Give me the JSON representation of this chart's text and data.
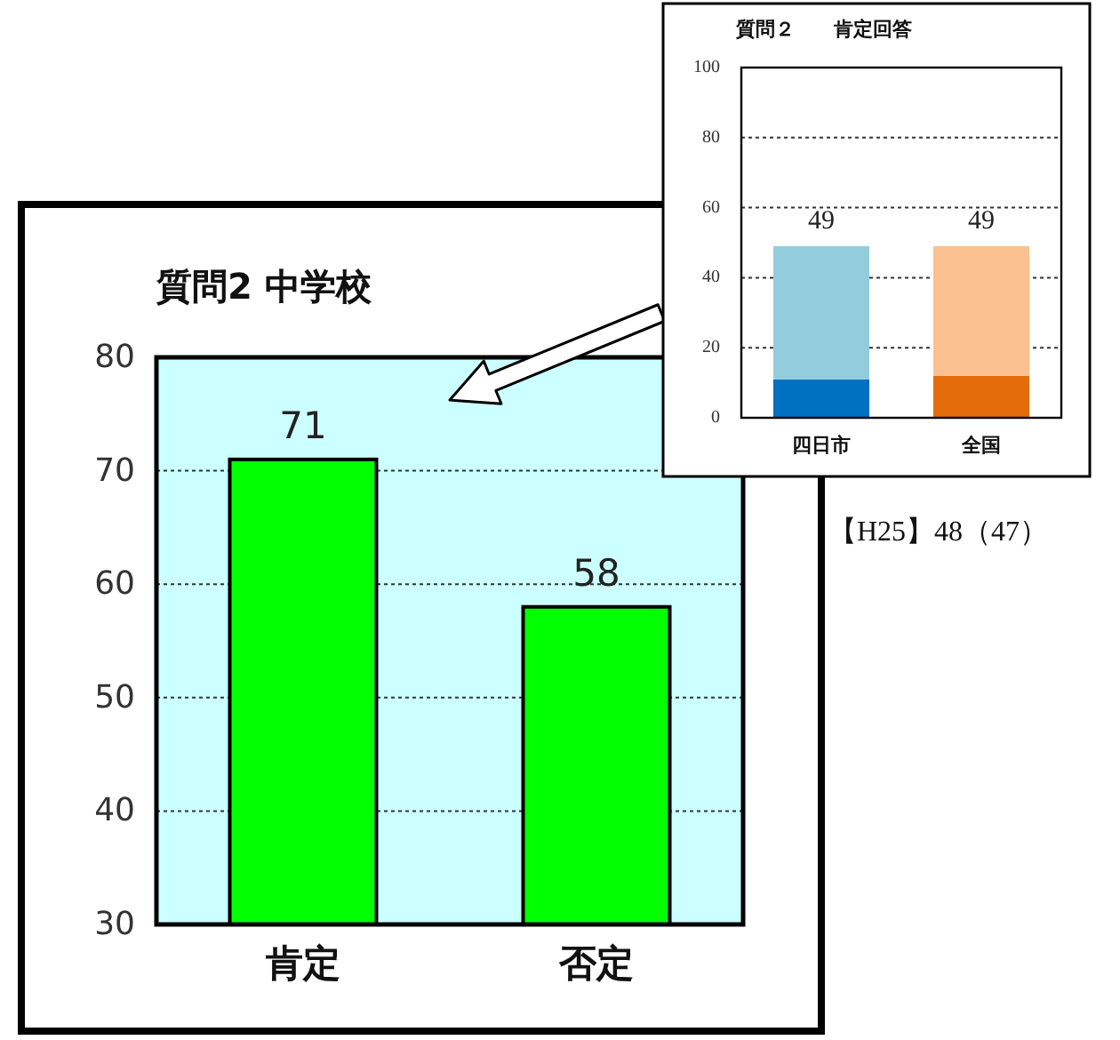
{
  "chart_data": [
    {
      "type": "bar",
      "title": "質問2 中学校",
      "categories": [
        "肯定",
        "否定"
      ],
      "values": [
        71,
        58
      ],
      "color": "#00ff00",
      "ylim": [
        30,
        80
      ],
      "yticks": [
        30,
        40,
        50,
        60,
        70,
        80
      ],
      "grid": "y",
      "data_labels": true
    },
    {
      "type": "bar",
      "title": "質問２　　肯定回答",
      "categories": [
        "四日市",
        "全国"
      ],
      "stacked": true,
      "series": [
        {
          "colors": [
            "#0070c0",
            "#e46c0a"
          ],
          "values": [
            11,
            12
          ]
        },
        {
          "colors": [
            "#93cddd",
            "#fac090"
          ],
          "values": [
            38,
            37
          ]
        }
      ],
      "totals": [
        "49",
        "49"
      ],
      "ylim": [
        0,
        100
      ],
      "yticks": [
        0,
        20,
        40,
        60,
        80,
        100
      ],
      "grid": "y",
      "annotations": [
        "【H25】48（47）"
      ]
    }
  ]
}
